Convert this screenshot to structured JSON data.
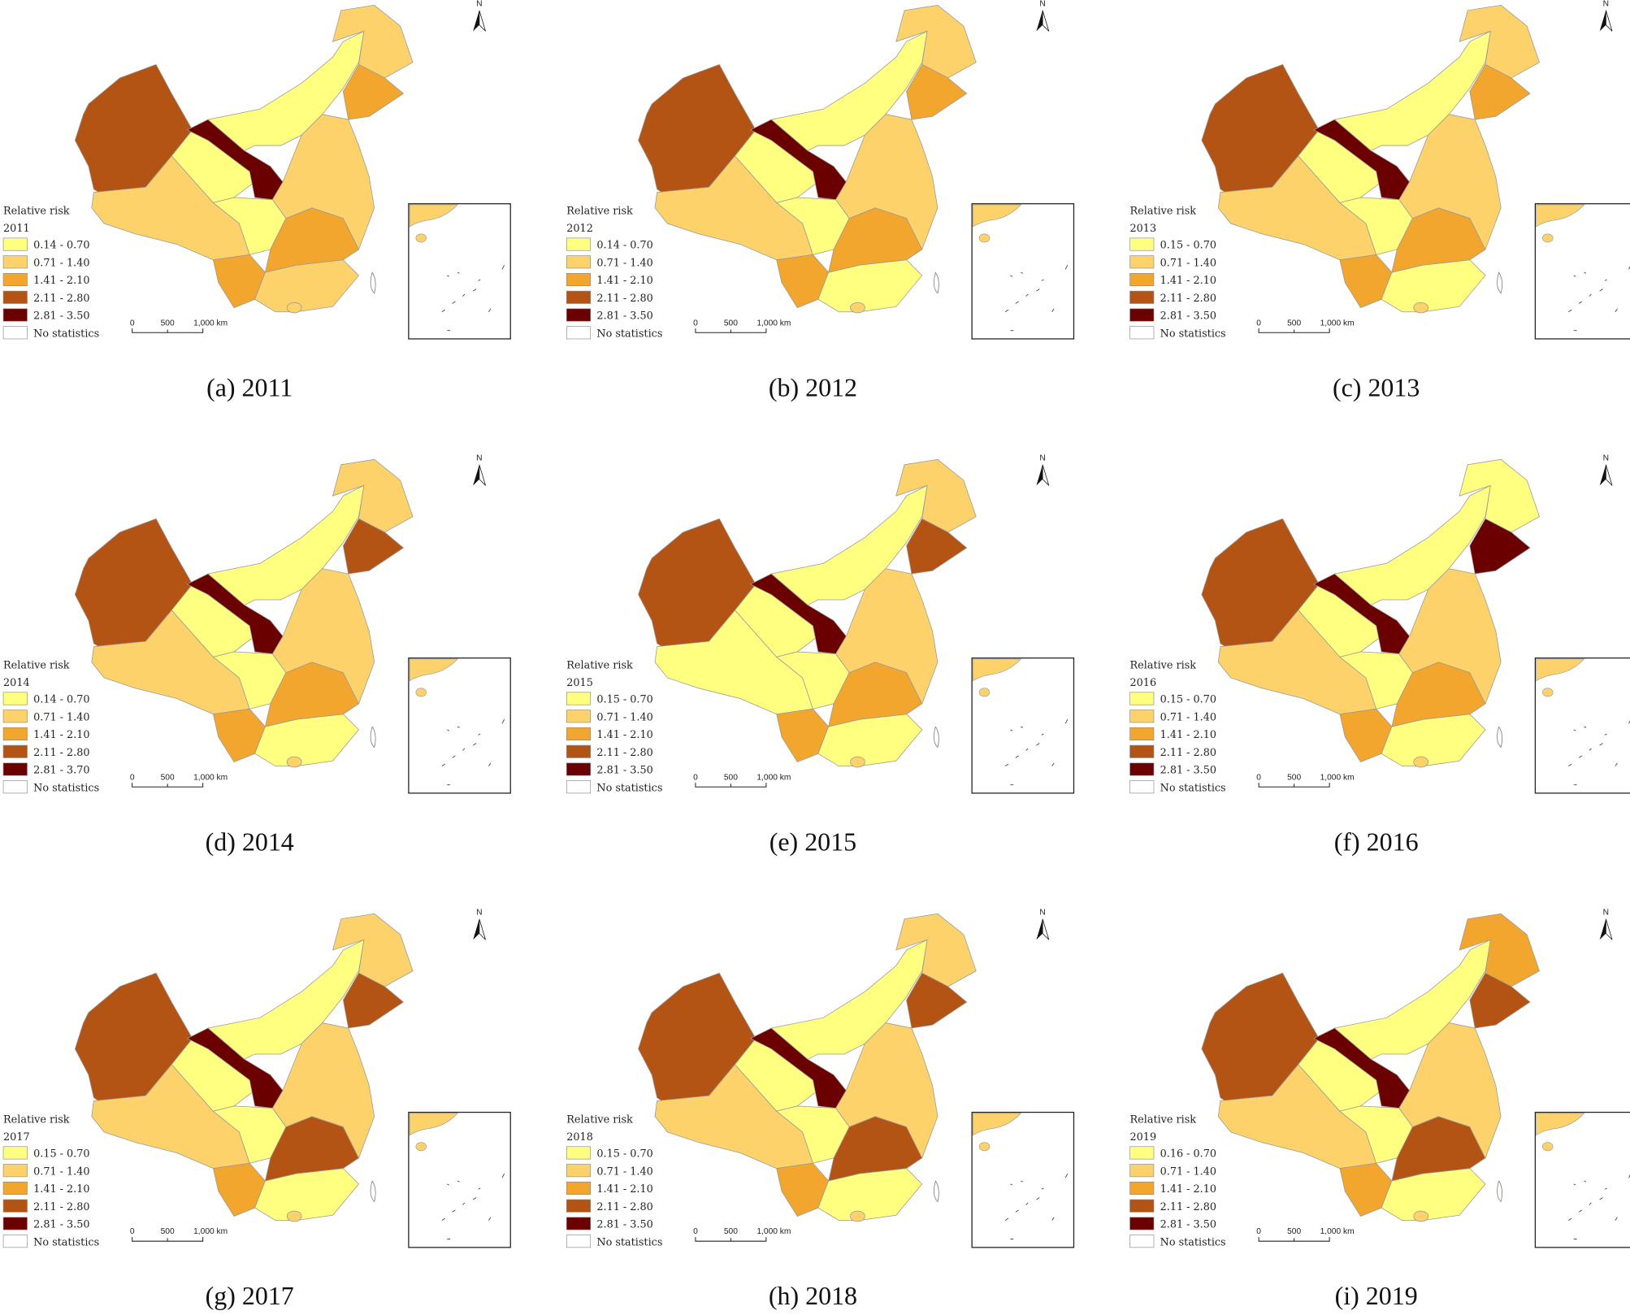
{
  "legend_colors": [
    "#ffff80",
    "#fdd26a",
    "#f2a62e",
    "#b35414",
    "#6b0000"
  ],
  "panels": [
    {
      "caption": "(a) 2011",
      "legend_title": "Relative risk",
      "year": "2011",
      "classes": [
        "0.14 - 0.70",
        "0.71 - 1.40",
        "1.41 - 2.10",
        "2.11 - 2.80",
        "2.81 - 3.50"
      ],
      "no_statistics": "No statistics",
      "scale_labels": [
        "0",
        "500",
        "1,000 km"
      ],
      "north": "N"
    },
    {
      "caption": "(b) 2012",
      "legend_title": "Relative risk",
      "year": "2012",
      "classes": [
        "0.14 - 0.70",
        "0.71 - 1.40",
        "1.41 - 2.10",
        "2.11 - 2.80",
        "2.81 - 3.50"
      ],
      "no_statistics": "No statistics",
      "scale_labels": [
        "0",
        "500",
        "1,000 km"
      ],
      "north": "N"
    },
    {
      "caption": "(c) 2013",
      "legend_title": "Relative risk",
      "year": "2013",
      "classes": [
        "0.15 - 0.70",
        "0.71 - 1.40",
        "1.41 - 2.10",
        "2.11 - 2.80",
        "2.81 - 3.50"
      ],
      "no_statistics": "No statistics",
      "scale_labels": [
        "0",
        "500",
        "1,000 km"
      ],
      "north": "N"
    },
    {
      "caption": "(d) 2014",
      "legend_title": "Relative risk",
      "year": "2014",
      "classes": [
        "0.14 - 0.70",
        "0.71 - 1.40",
        "1.41 - 2.10",
        "2.11 - 2.80",
        "2.81 - 3.70"
      ],
      "no_statistics": "No statistics",
      "scale_labels": [
        "0",
        "500",
        "1,000 km"
      ],
      "north": "N"
    },
    {
      "caption": "(e) 2015",
      "legend_title": "Relative risk",
      "year": "2015",
      "classes": [
        "0.15 - 0.70",
        "0.71 - 1.40",
        "1.41 - 2.10",
        "2.11 - 2.80",
        "2.81 - 3.50"
      ],
      "no_statistics": "No statistics",
      "scale_labels": [
        "0",
        "500",
        "1,000 km"
      ],
      "north": "N"
    },
    {
      "caption": "(f) 2016",
      "legend_title": "Relative risk",
      "year": "2016",
      "classes": [
        "0.15 - 0.70",
        "0.71 - 1.40",
        "1.41 - 2.10",
        "2.11 - 2.80",
        "2.81 - 3.50"
      ],
      "no_statistics": "No statistics",
      "scale_labels": [
        "0",
        "500",
        "1,000 km"
      ],
      "north": "N"
    },
    {
      "caption": "(g) 2017",
      "legend_title": "Relative risk",
      "year": "2017",
      "classes": [
        "0.15 - 0.70",
        "0.71 - 1.40",
        "1.41 - 2.10",
        "2.11 - 2.80",
        "2.81 - 3.50"
      ],
      "no_statistics": "No statistics",
      "scale_labels": [
        "0",
        "500",
        "1,000 km"
      ],
      "north": "N"
    },
    {
      "caption": "(h) 2018",
      "legend_title": "Relative risk",
      "year": "2018",
      "classes": [
        "0.15 - 0.70",
        "0.71 - 1.40",
        "1.41 - 2.10",
        "2.11 - 2.80",
        "2.81 - 3.50"
      ],
      "no_statistics": "No statistics",
      "scale_labels": [
        "0",
        "500",
        "1,000 km"
      ],
      "north": "N"
    },
    {
      "caption": "(i) 2019",
      "legend_title": "Relative risk",
      "year": "2019",
      "classes": [
        "0.16 - 0.70",
        "0.71 - 1.40",
        "1.41 - 2.10",
        "2.11 - 2.80",
        "2.81 - 3.50"
      ],
      "no_statistics": "No statistics",
      "scale_labels": [
        "0",
        "500",
        "1,000 km"
      ],
      "north": "N"
    }
  ]
}
